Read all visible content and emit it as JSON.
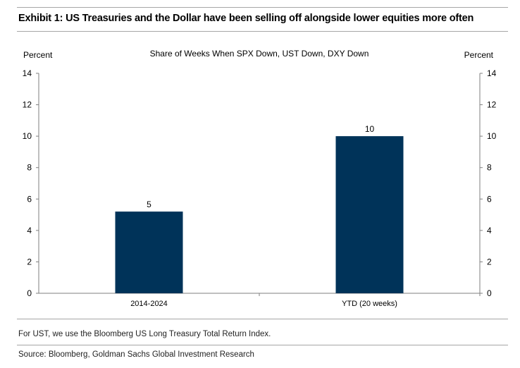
{
  "exhibit_title": "Exhibit 1: US Treasuries and the Dollar have been selling off alongside lower equities more often",
  "footnote": "For UST, we use the Bloomberg US Long Treasury Total Return Index.",
  "source": "Source: Bloomberg, Goldman Sachs Global Investment Research",
  "colors": {
    "bar": "#003359",
    "axis": "#7f7f7f",
    "rule": "#a6a6a6"
  },
  "chart_data": {
    "type": "bar",
    "title": "Share of Weeks When SPX Down, UST Down, DXY Down",
    "left_axis_label": "Percent",
    "right_axis_label": "Percent",
    "categories": [
      "2014-2024",
      "YTD (20 weeks)"
    ],
    "values": [
      5.2,
      10
    ],
    "data_labels": [
      "5",
      "10"
    ],
    "ylim": [
      0,
      14
    ],
    "yticks": [
      0,
      2,
      4,
      6,
      8,
      10,
      12,
      14
    ],
    "grid": false,
    "legend": "none"
  }
}
